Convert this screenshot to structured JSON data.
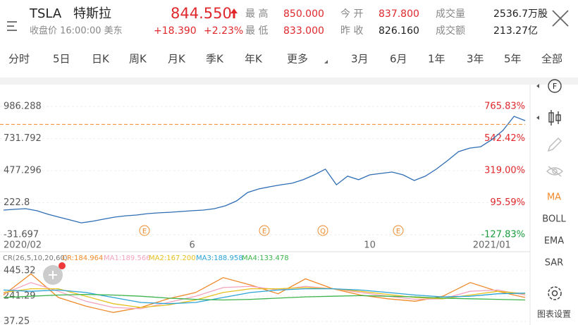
{
  "header": {
    "symbol": "TSLA",
    "name": "特斯拉",
    "price": "844.550",
    "status": "收盘价 16:00:00 美东",
    "change": "+18.390",
    "change_pct": "+2.23%",
    "stats": [
      {
        "label": "最 高",
        "value": "850.000"
      },
      {
        "label": "最 低",
        "value": "833.000"
      },
      {
        "label": "今 开",
        "value": "837.800"
      },
      {
        "label": "昨 收",
        "value": "826.160"
      },
      {
        "label": "成交量",
        "value": "2536.7万股"
      },
      {
        "label": "成交额",
        "value": "213.27亿"
      }
    ]
  },
  "tabs": [
    "分时",
    "5日",
    "日K",
    "周K",
    "月K",
    "季K",
    "年K",
    "更多",
    "3月",
    "6月",
    "1年",
    "3年",
    "5年",
    "全部"
  ],
  "events": [
    "E",
    "E",
    "Q",
    "E"
  ],
  "sidebar": [
    "MA",
    "BOLL",
    "EMA",
    "SAR",
    "图表设置"
  ],
  "chart_data": [
    {
      "type": "line",
      "color": "#2f6db5",
      "categories": [
        "2020/02",
        null,
        null,
        null,
        null,
        null,
        null,
        null,
        null,
        null,
        null,
        null,
        null,
        null,
        null,
        null,
        null,
        "6",
        null,
        null,
        null,
        null,
        null,
        null,
        null,
        null,
        null,
        null,
        null,
        null,
        null,
        null,
        null,
        "10",
        null,
        null,
        null,
        null,
        null,
        null,
        null,
        null,
        null,
        null,
        "2021/01",
        null,
        null,
        null
      ],
      "values": [
        164,
        170,
        175,
        159,
        131,
        108,
        86,
        63,
        75,
        92,
        108,
        119,
        125,
        136,
        142,
        147,
        153,
        159,
        164,
        175,
        198,
        237,
        304,
        332,
        349,
        365,
        377,
        405,
        444,
        489,
        365,
        433,
        405,
        444,
        455,
        466,
        444,
        399,
        433,
        489,
        556,
        628,
        656,
        667,
        723,
        796,
        908,
        874
      ],
      "reference_line": 844.55,
      "ylim": [
        -31.697,
        986.288
      ],
      "yticks": [
        986.288,
        731.792,
        477.296,
        222.8,
        -31.697
      ],
      "y2lim": [
        -127.83,
        765.83
      ],
      "y2ticks": [
        {
          "value": 765.83,
          "label": "765.83%"
        },
        {
          "value": 542.42,
          "label": "542.42%"
        },
        {
          "value": 319.0,
          "label": "319.00%"
        },
        {
          "value": 95.59,
          "label": "95.59%"
        },
        {
          "value": -127.83,
          "label": "-127.83%"
        }
      ]
    },
    {
      "type": "line",
      "title": "CR(26,5,10,20,60)",
      "series": [
        {
          "name": "CR:184.964",
          "color": "#ef8a2c",
          "values": [
            250,
            420,
            230,
            160,
            110,
            150,
            220,
            270,
            390,
            330,
            260,
            380,
            300,
            250,
            220,
            200,
            240,
            350,
            280,
            230
          ]
        },
        {
          "name": "MA1:189.566",
          "color": "#f3a3bd",
          "values": [
            260,
            350,
            280,
            200,
            150,
            140,
            190,
            240,
            310,
            320,
            290,
            320,
            300,
            270,
            240,
            215,
            220,
            280,
            290,
            250
          ]
        },
        {
          "name": "MA2:167.200",
          "color": "#e6c11e",
          "values": [
            270,
            300,
            300,
            240,
            180,
            150,
            170,
            210,
            270,
            300,
            300,
            310,
            300,
            280,
            255,
            230,
            220,
            250,
            280,
            260
          ]
        },
        {
          "name": "MA3:188.958",
          "color": "#2ba3d6",
          "values": [
            290,
            280,
            290,
            270,
            230,
            190,
            180,
            190,
            230,
            270,
            290,
            300,
            300,
            290,
            270,
            250,
            235,
            240,
            260,
            265
          ]
        },
        {
          "name": "MA4:133.478",
          "color": "#3cb44b",
          "values": [
            230,
            240,
            250,
            255,
            250,
            240,
            225,
            215,
            210,
            215,
            225,
            235,
            240,
            245,
            240,
            235,
            225,
            220,
            215,
            210
          ]
        }
      ],
      "ylim": [
        37.25,
        445.32
      ],
      "yticks": [
        445.32,
        241.29,
        37.25
      ]
    }
  ]
}
